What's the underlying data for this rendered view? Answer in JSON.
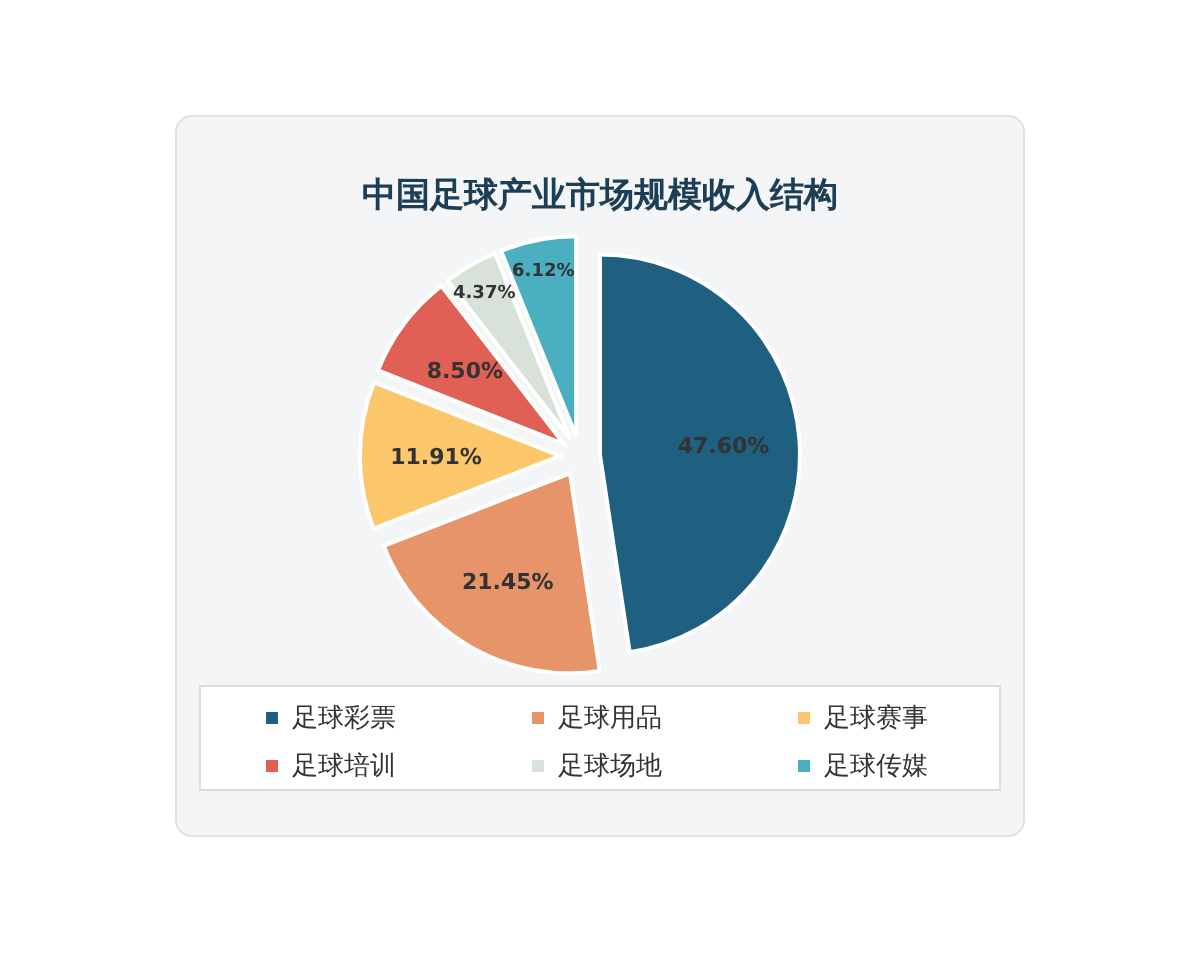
{
  "chart_data": {
    "type": "pie",
    "title": "中国足球产业市场规模收入结构",
    "categories": [
      "足球彩票",
      "足球用品",
      "足球赛事",
      "足球培训",
      "足球场地",
      "足球传媒"
    ],
    "values": [
      47.6,
      21.45,
      11.91,
      8.5,
      4.37,
      6.12
    ],
    "colors": [
      "#1f5f80",
      "#e8946a",
      "#fbc76a",
      "#e06055",
      "#d8e2d8",
      "#4ab0c0"
    ],
    "value_labels": [
      "47.60%",
      "21.45%",
      "11.91%",
      "8.50%",
      "4.37%",
      "6.12%"
    ],
    "legend": "bottom"
  }
}
